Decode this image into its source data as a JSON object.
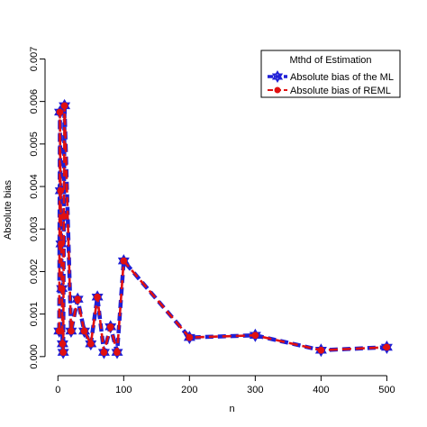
{
  "chart_data": {
    "type": "line",
    "xlabel": "n",
    "ylabel": "Absolute bias",
    "xlim": [
      -10,
      520
    ],
    "ylim": [
      -0.0003,
      0.0072
    ],
    "xticks": [
      0,
      100,
      200,
      300,
      400,
      500
    ],
    "xtick_labels": [
      "0",
      "100",
      "200",
      "300",
      "400",
      "500"
    ],
    "yticks": [
      0.0,
      0.001,
      0.002,
      0.003,
      0.004,
      0.005,
      0.006,
      0.007
    ],
    "ytick_labels": [
      "0.000",
      "0.001",
      "0.002",
      "0.003",
      "0.004",
      "0.005",
      "0.006",
      "0.007"
    ],
    "grid": false,
    "legend": {
      "title": "Mthd of Estimation",
      "position": "top-right"
    },
    "series": [
      {
        "name": "Absolute bias of the ML",
        "color": "#1f1fd6",
        "marker": "star",
        "x": [
          2,
          3,
          4,
          5,
          6,
          7,
          8,
          9,
          10,
          20,
          30,
          40,
          50,
          60,
          70,
          80,
          90,
          100,
          200,
          300,
          400,
          500
        ],
        "y": [
          0.0006,
          0.00575,
          0.0039,
          0.00265,
          0.0016,
          0.0003,
          0.0001,
          0.0033,
          0.0059,
          0.0006,
          0.00135,
          0.0006,
          0.0003,
          0.0014,
          0.0001,
          0.0007,
          0.0001,
          0.00225,
          0.00045,
          0.0005,
          0.00015,
          0.00022
        ]
      },
      {
        "name": "Absolute bias of REML",
        "color": "#e01010",
        "marker": "circle",
        "x": [
          2,
          3,
          4,
          5,
          6,
          7,
          8,
          9,
          10,
          20,
          30,
          40,
          50,
          60,
          70,
          80,
          90,
          100,
          200,
          300,
          400,
          500
        ],
        "y": [
          0.0006,
          0.00575,
          0.0039,
          0.00265,
          0.0016,
          0.0003,
          0.0001,
          0.0033,
          0.0059,
          0.0006,
          0.00135,
          0.0006,
          0.0003,
          0.0014,
          0.0001,
          0.0007,
          0.0001,
          0.00225,
          0.00045,
          0.0005,
          0.00015,
          0.00022
        ]
      }
    ]
  }
}
